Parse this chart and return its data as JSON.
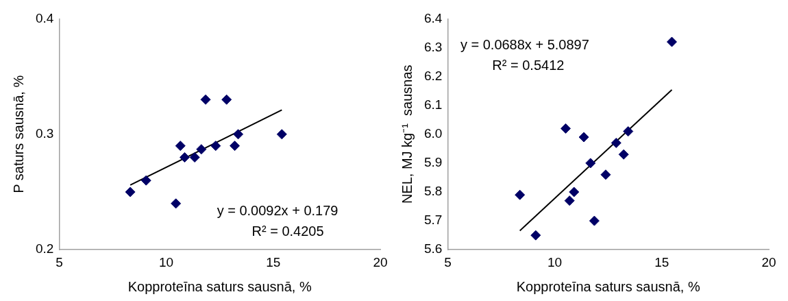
{
  "chart_data": [
    {
      "type": "scatter",
      "xlabel": "Kopproteīna saturs sausnā, %",
      "ylabel": "P saturs sausnā, %",
      "xlim": [
        5,
        20
      ],
      "xticks": [
        5,
        10,
        15,
        20
      ],
      "ylim": [
        0.2,
        0.4
      ],
      "yticks": [
        0.2,
        0.3,
        0.4
      ],
      "annotations": [
        "y = 0.0092x + 0.179",
        "R² = 0.4205"
      ],
      "series": [
        {
          "type": "scatter",
          "color": "#000066",
          "marker": "diamond",
          "x": [
            8.32,
            9.06,
            10.45,
            10.66,
            10.86,
            11.33,
            11.64,
            11.84,
            12.31,
            12.82,
            13.2,
            13.36,
            15.4
          ],
          "values": [
            0.25,
            0.26,
            0.24,
            0.29,
            0.28,
            0.28,
            0.287,
            0.33,
            0.29,
            0.33,
            0.29,
            0.3,
            0.3
          ]
        },
        {
          "type": "line",
          "color": "#000000",
          "marker": "none",
          "line_style": "solid",
          "x": [
            8.32,
            15.4
          ],
          "values": [
            0.256,
            0.321
          ]
        }
      ]
    },
    {
      "type": "scatter",
      "xlabel": "Kopproteīna saturs sausnā, %",
      "ylabel": "NEL, MJ kg⁻¹  sausnas",
      "xlim": [
        5,
        20
      ],
      "xticks": [
        5,
        10,
        15,
        20
      ],
      "ylim": [
        5.6,
        6.4
      ],
      "yticks": [
        5.6,
        5.7,
        5.8,
        5.9,
        {
          "value": 6,
          "label": "6.0"
        },
        6.1,
        6.2,
        6.3,
        6.4
      ],
      "annotations": [
        "y = 0.0688x + 5.0897",
        "R² = 0.5412"
      ],
      "series": [
        {
          "type": "scatter",
          "color": "#000066",
          "marker": "diamond",
          "x": [
            8.37,
            9.11,
            10.51,
            11.36,
            13.43,
            12.87,
            13.22,
            11.67,
            12.38,
            10.9,
            10.69,
            11.85,
            15.47
          ],
          "values": [
            5.79,
            5.65,
            6.02,
            5.99,
            6.01,
            5.97,
            5.93,
            5.9,
            5.86,
            5.8,
            5.77,
            5.7,
            6.32
          ]
        },
        {
          "type": "line",
          "color": "#000000",
          "marker": "none",
          "line_style": "solid",
          "x": [
            8.37,
            15.47
          ],
          "values": [
            5.666,
            6.154
          ]
        }
      ]
    }
  ]
}
